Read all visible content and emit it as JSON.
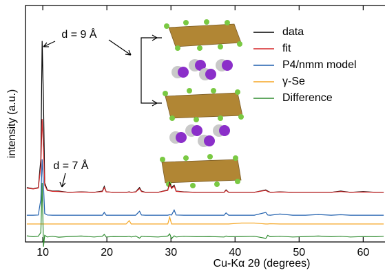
{
  "chart_data": {
    "type": "line",
    "xlabel": "Cu-Kα 2θ (degrees)",
    "ylabel": "intensity (a.u.)",
    "annotations": [
      "d = 9 Å",
      "d = 7 Å"
    ],
    "xlim": [
      7.3,
      63.4
    ],
    "ylim": [
      0,
      100
    ],
    "xticks": [
      10,
      20,
      30,
      40,
      50,
      60
    ],
    "legend": "upper right",
    "x": [
      7.5,
      8.5,
      9.3,
      9.7,
      9.9,
      10.1,
      10.3,
      10.7,
      11.5,
      12.5,
      14,
      16,
      18,
      19.3,
      19.6,
      19.9,
      21,
      23,
      23.5,
      23.8,
      24.5,
      25.1,
      25.4,
      26,
      28,
      29.5,
      29.8,
      30.1,
      30.5,
      30.8,
      32,
      34,
      36,
      38.3,
      38.6,
      39,
      41,
      43,
      44.8,
      45.1,
      45.5,
      47,
      49,
      51,
      53,
      55,
      56.5,
      58,
      60,
      62,
      63.2
    ],
    "series": [
      {
        "name": "data",
        "color": "#000000",
        "values": [
          23,
          22.5,
          23,
          35,
          85,
          60,
          25,
          22,
          21.5,
          21.5,
          21,
          21.2,
          21,
          21.5,
          23.5,
          21.2,
          21,
          21,
          21.2,
          21,
          21.2,
          23,
          21.5,
          21,
          21,
          22,
          25,
          23,
          24,
          21.5,
          21.2,
          21,
          21,
          21,
          22,
          21,
          21,
          21,
          22,
          21.5,
          21,
          21.2,
          21,
          21,
          21,
          21,
          21.5,
          21,
          21.3,
          21,
          21
        ]
      },
      {
        "name": "fit",
        "color": "#d62728",
        "values": [
          22.8,
          22.4,
          22.8,
          32,
          52,
          40,
          24,
          21.8,
          21.4,
          21.3,
          21,
          21.1,
          21,
          21.3,
          23,
          21.2,
          21,
          21,
          21.1,
          21,
          21.1,
          22.6,
          21.3,
          21,
          21,
          21.8,
          24.5,
          22.6,
          23.6,
          21.4,
          21.1,
          21,
          21,
          21,
          21.8,
          21,
          21,
          21,
          21.8,
          21.3,
          21,
          21.1,
          21,
          21,
          21,
          21,
          21.3,
          21,
          21.1,
          21,
          21
        ]
      },
      {
        "name": "P4/nmm model",
        "color": "#1f5fad",
        "values": [
          11.3,
          11.3,
          11.4,
          18,
          35,
          24,
          12,
          11.4,
          11.3,
          11.3,
          11.3,
          11.3,
          11.3,
          11.3,
          12.5,
          11.3,
          11.3,
          11.3,
          11.3,
          11.3,
          11.3,
          13,
          11.4,
          11.3,
          11.3,
          11.3,
          11.5,
          11.4,
          13.5,
          11.4,
          11.3,
          11.3,
          11.3,
          11.3,
          12.3,
          11.3,
          11.3,
          11.3,
          12.5,
          11.4,
          11.3,
          11.8,
          11.3,
          11.3,
          11.6,
          11.3,
          11.5,
          11.3,
          11.3,
          11.3,
          11.3
        ]
      },
      {
        "name": "γ-Se",
        "color": "#f5a623",
        "values": [
          7.6,
          7.6,
          7.6,
          7.6,
          7.6,
          7.6,
          7.6,
          7.6,
          7.6,
          7.6,
          7.6,
          7.6,
          7.6,
          7.6,
          7.6,
          7.6,
          7.6,
          7.6,
          9,
          7.6,
          7.6,
          7.6,
          7.6,
          7.6,
          7.6,
          7.6,
          10.5,
          7.6,
          7.6,
          7.6,
          7.6,
          7.6,
          7.6,
          7.6,
          7.6,
          7.6,
          8,
          8,
          7.6,
          7.6,
          7.7,
          7.6,
          7.6,
          7.6,
          7.6,
          7.6,
          7.6,
          7.6,
          7.6,
          7.6,
          7.6
        ]
      },
      {
        "name": "Difference",
        "color": "#2e8b2e",
        "values": [
          2.6,
          2.2,
          2.4,
          4,
          25,
          -2,
          2.8,
          2.1,
          2.4,
          2,
          2.3,
          2.5,
          2.1,
          2.4,
          3.2,
          2.1,
          2.3,
          2.2,
          2.4,
          2.1,
          2.5,
          1.6,
          2.4,
          2.3,
          2.1,
          2.5,
          3.4,
          1.4,
          2.6,
          2.1,
          2.4,
          2.2,
          2.3,
          2.1,
          2.5,
          2.2,
          2.3,
          2.4,
          1.5,
          2.8,
          2.2,
          2.4,
          2.1,
          2.3,
          2.5,
          2.2,
          2.4,
          2.1,
          2.3,
          2.2,
          2.4
        ]
      }
    ]
  }
}
